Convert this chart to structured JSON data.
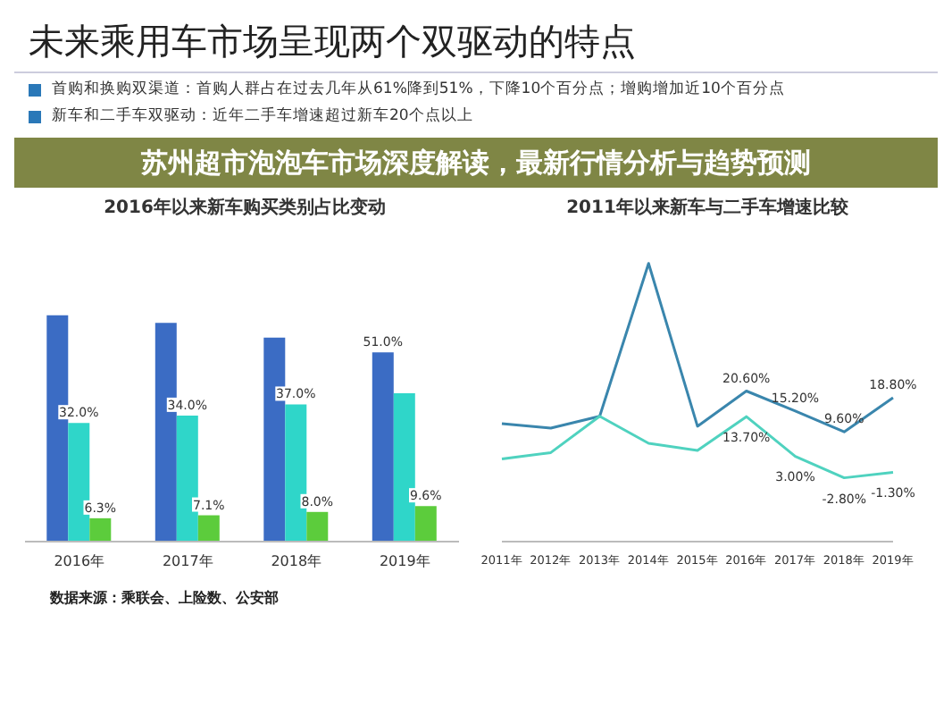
{
  "chart_data": [
    {
      "type": "bar",
      "title": "2016年以来新车购买类别占比变动",
      "categories": [
        "2016年",
        "2017年",
        "2018年",
        "2019年"
      ],
      "series": [
        {
          "color": "#3b6cc4",
          "values": [
            61,
            59,
            55,
            51
          ],
          "value_labels": [
            null,
            null,
            null,
            "51.0%"
          ]
        },
        {
          "color": "#2fd6c9",
          "values": [
            32,
            34,
            37,
            40
          ],
          "value_labels": [
            "32.0%",
            "34.0%",
            "37.0%",
            null
          ]
        },
        {
          "color": "#5ccc3c",
          "values": [
            6.3,
            7.1,
            8.0,
            9.6
          ],
          "value_labels": [
            "6.3%",
            "7.1%",
            "8.0%",
            "9.6%"
          ]
        }
      ],
      "annotations": [
        "未来乘用车市场呈现两个双驱动的特点",
        "首购和换购双渠道：首购人群占在过去几年从61%降到51%，下降10个百分点；增购增加近10个百分点",
        "新车和二手车双驱动：近年二手车增速超过新车20个点以上",
        "苏州超市泡泡车市场深度解读，最新行情分析与趋势预测",
        "数据来源：乘联会、上险数、公安部"
      ]
    },
    {
      "type": "line",
      "title": "2011年以来新车与二手车增速比较",
      "categories": [
        "2011年",
        "2012年",
        "2013年",
        "2014年",
        "2015年",
        "2016年",
        "2017年",
        "2018年",
        "2019年"
      ],
      "series": [
        {
          "color": "#3a86ad",
          "values": [
            11.8,
            10.6,
            13.8,
            55,
            11.1,
            20.6,
            15.2,
            9.6,
            18.8
          ],
          "value_labels": [
            null,
            null,
            null,
            null,
            null,
            "20.60%",
            "15.20%",
            "9.60%",
            "18.80%"
          ]
        },
        {
          "color": "#4fd2bf",
          "values": [
            2.3,
            4.0,
            13.8,
            6.5,
            4.6,
            13.7,
            3.0,
            -2.8,
            -1.3
          ],
          "value_labels": [
            null,
            null,
            null,
            null,
            null,
            "13.70%",
            "3.00%",
            "-2.80%",
            "-1.30%"
          ]
        }
      ]
    }
  ]
}
